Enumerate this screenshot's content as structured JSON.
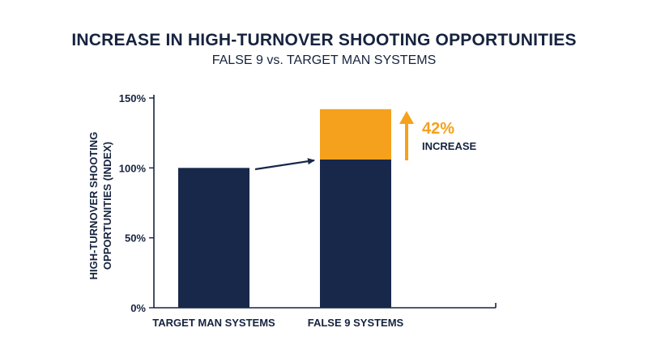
{
  "colors": {
    "navy": "#17284a",
    "orange": "#f5a11d",
    "text": "#16233f"
  },
  "chart_data": {
    "type": "bar",
    "title": "INCREASE IN HIGH-TURNOVER SHOOTING OPPORTUNITIES",
    "subtitle": "FALSE 9 vs. TARGET MAN SYSTEMS",
    "ylabel_lines": [
      "HIGH-TURNOVER SHOOTING",
      "OPPORTUNITIES (INDEX)"
    ],
    "categories": [
      "TARGET MAN SYSTEMS",
      "FALSE 9 SYSTEMS"
    ],
    "series": [
      {
        "values": [
          100,
          106
        ]
      },
      {
        "values": [
          0,
          36
        ]
      }
    ],
    "ylim": [
      0,
      150
    ],
    "yticks": [
      0,
      50,
      100,
      150
    ],
    "ytick_labels": [
      "0%",
      "50%",
      "100%",
      "150%"
    ],
    "grid": false,
    "annotation": {
      "value_label": "42%",
      "text": "INCREASE"
    }
  }
}
